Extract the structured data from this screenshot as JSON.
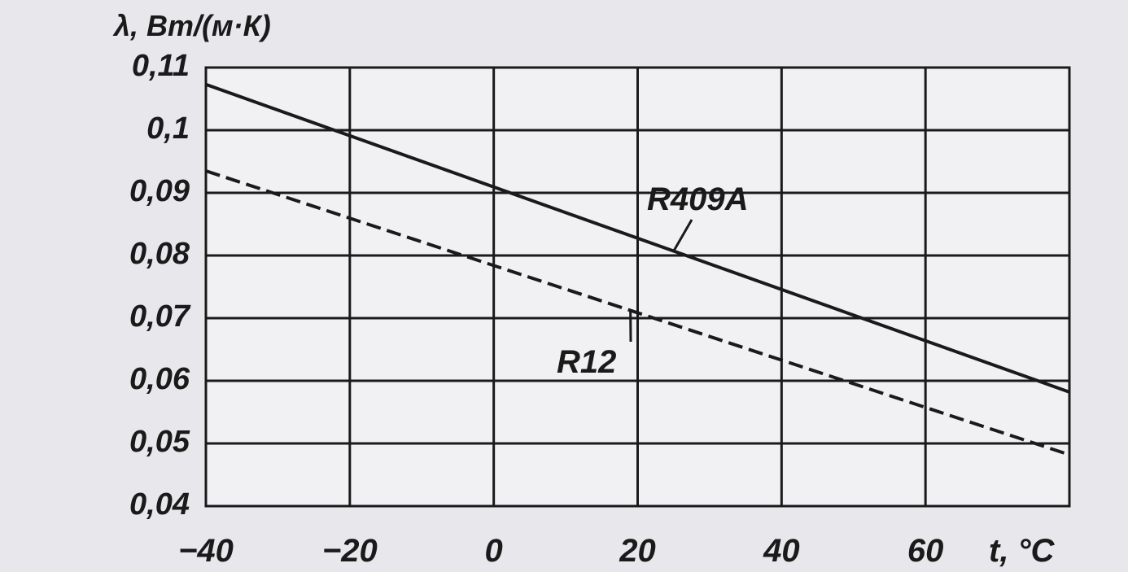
{
  "chart_data": {
    "type": "line",
    "title": "",
    "ylabel": "λ, Вт/(м·К)",
    "xlabel": "t, °C",
    "xlim": [
      -40,
      80
    ],
    "ylim": [
      0.04,
      0.11
    ],
    "grid": true,
    "x_ticks": [
      -40,
      -20,
      0,
      20,
      40,
      60,
      80
    ],
    "x_tick_labels": [
      "−40",
      "−20",
      "0",
      "20",
      "40",
      "60"
    ],
    "y_ticks": [
      0.04,
      0.05,
      0.06,
      0.07,
      0.08,
      0.09,
      0.1,
      0.11
    ],
    "y_tick_labels": [
      "0,04",
      "0,05",
      "0,06",
      "0,07",
      "0,08",
      "0,09",
      "0,1",
      "0,11"
    ],
    "series": [
      {
        "name": "R409A",
        "style": "solid",
        "x": [
          -40,
          80
        ],
        "y": [
          0.1073,
          0.0582
        ]
      },
      {
        "name": "R12",
        "style": "dashed",
        "x": [
          -40,
          80
        ],
        "y": [
          0.0935,
          0.0482
        ]
      }
    ],
    "annotations": [
      {
        "text": "R409A",
        "series": "R409A",
        "at_x": 25
      },
      {
        "text": "R12",
        "series": "R12",
        "at_x": 19
      }
    ]
  }
}
